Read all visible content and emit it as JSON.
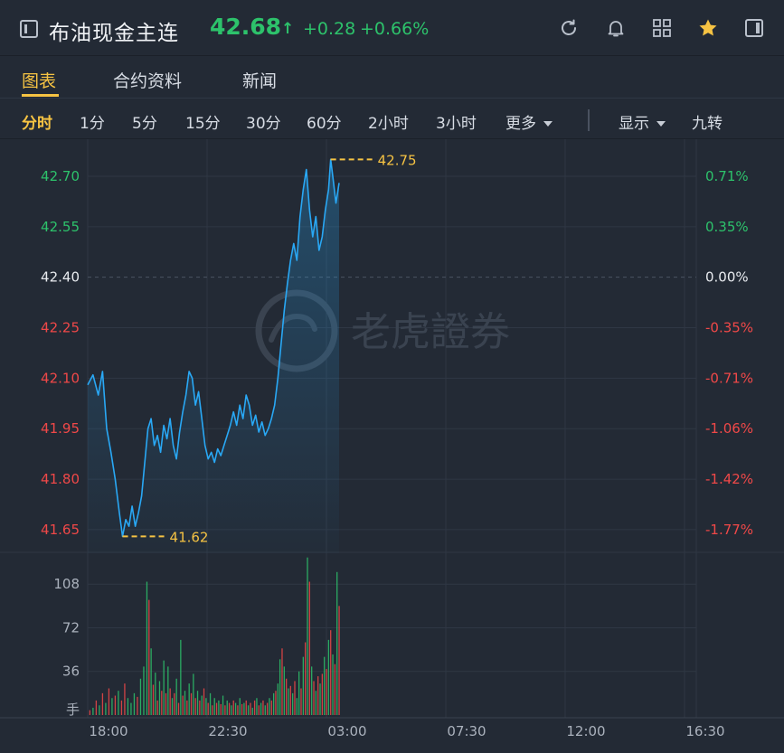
{
  "header": {
    "title": "布油现金主连",
    "price": "42.68",
    "price_arrow": "↑",
    "change": "+0.28",
    "change_pct": "+0.66%",
    "icons": [
      "refresh-icon",
      "bell-icon",
      "grid-icon",
      "star-icon",
      "panel-icon"
    ]
  },
  "tabs": [
    "图表",
    "合约资料",
    "新闻"
  ],
  "periods": {
    "items": [
      "分时",
      "1分",
      "5分",
      "15分",
      "30分",
      "60分",
      "2小时",
      "3小时"
    ],
    "more": "更多",
    "display": "显示",
    "jiuzhuan": "九转"
  },
  "watermark": "老虎證券",
  "colors": {
    "up": "#2dc26b",
    "down": "#f04848",
    "line": "#29a8f5",
    "accent": "#f6c343",
    "neutral": "#e8ebef"
  },
  "chart_data": {
    "type": "line",
    "prev_close": 42.4,
    "y_ticks_left": [
      "42.70",
      "42.55",
      "42.40",
      "42.25",
      "42.10",
      "41.95",
      "41.80",
      "41.65"
    ],
    "y_ticks_right": [
      "0.71%",
      "0.35%",
      "0.00%",
      "-0.35%",
      "-0.71%",
      "-1.06%",
      "-1.42%",
      "-1.77%"
    ],
    "ylim": [
      41.58,
      42.81
    ],
    "x_ticks": [
      "18:00",
      "22:30",
      "03:00",
      "07:30",
      "12:00",
      "16:30"
    ],
    "high_label": "42.75",
    "low_label": "41.62",
    "volume_ticks": [
      "108",
      "72",
      "36"
    ],
    "volume_unit": "手",
    "volume_max": 135,
    "price_series": [
      [
        0,
        42.08
      ],
      [
        5,
        42.11
      ],
      [
        10,
        42.05
      ],
      [
        14,
        42.12
      ],
      [
        18,
        41.95
      ],
      [
        22,
        41.88
      ],
      [
        26,
        41.8
      ],
      [
        30,
        41.7
      ],
      [
        33,
        41.63
      ],
      [
        36,
        41.68
      ],
      [
        39,
        41.66
      ],
      [
        42,
        41.72
      ],
      [
        45,
        41.66
      ],
      [
        48,
        41.7
      ],
      [
        51,
        41.75
      ],
      [
        54,
        41.85
      ],
      [
        57,
        41.95
      ],
      [
        60,
        41.98
      ],
      [
        63,
        41.9
      ],
      [
        66,
        41.93
      ],
      [
        69,
        41.88
      ],
      [
        72,
        41.96
      ],
      [
        75,
        41.92
      ],
      [
        78,
        41.98
      ],
      [
        81,
        41.9
      ],
      [
        84,
        41.86
      ],
      [
        87,
        41.94
      ],
      [
        90,
        42.0
      ],
      [
        93,
        42.05
      ],
      [
        96,
        42.12
      ],
      [
        99,
        42.1
      ],
      [
        102,
        42.02
      ],
      [
        105,
        42.06
      ],
      [
        108,
        41.98
      ],
      [
        111,
        41.9
      ],
      [
        114,
        41.86
      ],
      [
        117,
        41.88
      ],
      [
        120,
        41.85
      ],
      [
        123,
        41.89
      ],
      [
        126,
        41.87
      ],
      [
        129,
        41.9
      ],
      [
        132,
        41.93
      ],
      [
        135,
        41.96
      ],
      [
        138,
        42.0
      ],
      [
        141,
        41.96
      ],
      [
        144,
        42.02
      ],
      [
        147,
        41.98
      ],
      [
        150,
        42.05
      ],
      [
        153,
        42.02
      ],
      [
        156,
        41.96
      ],
      [
        159,
        41.99
      ],
      [
        162,
        41.94
      ],
      [
        165,
        41.97
      ],
      [
        168,
        41.93
      ],
      [
        171,
        41.95
      ],
      [
        174,
        41.98
      ],
      [
        177,
        42.02
      ],
      [
        180,
        42.1
      ],
      [
        183,
        42.2
      ],
      [
        186,
        42.3
      ],
      [
        189,
        42.38
      ],
      [
        192,
        42.45
      ],
      [
        195,
        42.5
      ],
      [
        198,
        42.45
      ],
      [
        201,
        42.58
      ],
      [
        204,
        42.66
      ],
      [
        207,
        42.72
      ],
      [
        210,
        42.6
      ],
      [
        213,
        42.52
      ],
      [
        216,
        42.58
      ],
      [
        219,
        42.48
      ],
      [
        222,
        42.52
      ],
      [
        225,
        42.6
      ],
      [
        228,
        42.66
      ],
      [
        230,
        42.75
      ],
      [
        232,
        42.7
      ],
      [
        235,
        42.62
      ],
      [
        238,
        42.68
      ]
    ],
    "volume_series": [
      [
        2,
        4,
        "down"
      ],
      [
        5,
        6,
        "up"
      ],
      [
        8,
        12,
        "down"
      ],
      [
        11,
        8,
        "up"
      ],
      [
        14,
        18,
        "down"
      ],
      [
        17,
        10,
        "up"
      ],
      [
        20,
        22,
        "down"
      ],
      [
        23,
        14,
        "up"
      ],
      [
        26,
        16,
        "down"
      ],
      [
        29,
        20,
        "up"
      ],
      [
        32,
        12,
        "down"
      ],
      [
        35,
        26,
        "down"
      ],
      [
        38,
        14,
        "up"
      ],
      [
        41,
        10,
        "up"
      ],
      [
        44,
        18,
        "up"
      ],
      [
        47,
        15,
        "down"
      ],
      [
        50,
        30,
        "up"
      ],
      [
        53,
        40,
        "up"
      ],
      [
        56,
        110,
        "up"
      ],
      [
        58,
        95,
        "down"
      ],
      [
        60,
        55,
        "up"
      ],
      [
        62,
        25,
        "down"
      ],
      [
        64,
        35,
        "up"
      ],
      [
        66,
        12,
        "down"
      ],
      [
        68,
        28,
        "up"
      ],
      [
        70,
        20,
        "down"
      ],
      [
        72,
        45,
        "up"
      ],
      [
        74,
        18,
        "down"
      ],
      [
        76,
        40,
        "up"
      ],
      [
        78,
        22,
        "down"
      ],
      [
        80,
        14,
        "up"
      ],
      [
        82,
        18,
        "down"
      ],
      [
        84,
        30,
        "up"
      ],
      [
        86,
        10,
        "down"
      ],
      [
        88,
        62,
        "up"
      ],
      [
        90,
        16,
        "down"
      ],
      [
        92,
        20,
        "up"
      ],
      [
        94,
        12,
        "down"
      ],
      [
        96,
        26,
        "up"
      ],
      [
        98,
        18,
        "down"
      ],
      [
        100,
        34,
        "up"
      ],
      [
        102,
        14,
        "down"
      ],
      [
        104,
        20,
        "up"
      ],
      [
        106,
        12,
        "down"
      ],
      [
        108,
        16,
        "up"
      ],
      [
        110,
        22,
        "down"
      ],
      [
        112,
        14,
        "up"
      ],
      [
        114,
        10,
        "down"
      ],
      [
        116,
        18,
        "up"
      ],
      [
        118,
        8,
        "down"
      ],
      [
        120,
        14,
        "up"
      ],
      [
        122,
        10,
        "down"
      ],
      [
        124,
        12,
        "up"
      ],
      [
        126,
        9,
        "down"
      ],
      [
        128,
        16,
        "up"
      ],
      [
        130,
        8,
        "down"
      ],
      [
        132,
        12,
        "up"
      ],
      [
        134,
        10,
        "down"
      ],
      [
        136,
        8,
        "up"
      ],
      [
        138,
        12,
        "down"
      ],
      [
        140,
        10,
        "up"
      ],
      [
        142,
        8,
        "down"
      ],
      [
        144,
        14,
        "up"
      ],
      [
        146,
        9,
        "down"
      ],
      [
        148,
        10,
        "up"
      ],
      [
        150,
        12,
        "down"
      ],
      [
        152,
        8,
        "up"
      ],
      [
        154,
        10,
        "down"
      ],
      [
        156,
        6,
        "up"
      ],
      [
        158,
        12,
        "down"
      ],
      [
        160,
        14,
        "up"
      ],
      [
        162,
        8,
        "down"
      ],
      [
        164,
        10,
        "up"
      ],
      [
        166,
        12,
        "down"
      ],
      [
        168,
        8,
        "up"
      ],
      [
        170,
        10,
        "down"
      ],
      [
        172,
        14,
        "up"
      ],
      [
        174,
        12,
        "down"
      ],
      [
        176,
        18,
        "up"
      ],
      [
        178,
        20,
        "down"
      ],
      [
        180,
        26,
        "up"
      ],
      [
        182,
        46,
        "up"
      ],
      [
        184,
        55,
        "down"
      ],
      [
        186,
        40,
        "up"
      ],
      [
        188,
        30,
        "down"
      ],
      [
        190,
        22,
        "up"
      ],
      [
        192,
        24,
        "down"
      ],
      [
        194,
        18,
        "up"
      ],
      [
        196,
        28,
        "down"
      ],
      [
        198,
        14,
        "up"
      ],
      [
        200,
        36,
        "up"
      ],
      [
        202,
        22,
        "down"
      ],
      [
        204,
        48,
        "up"
      ],
      [
        206,
        60,
        "down"
      ],
      [
        208,
        130,
        "up"
      ],
      [
        210,
        110,
        "down"
      ],
      [
        212,
        40,
        "up"
      ],
      [
        214,
        28,
        "down"
      ],
      [
        216,
        20,
        "up"
      ],
      [
        218,
        32,
        "down"
      ],
      [
        220,
        26,
        "up"
      ],
      [
        222,
        34,
        "down"
      ],
      [
        224,
        48,
        "up"
      ],
      [
        226,
        38,
        "down"
      ],
      [
        228,
        62,
        "up"
      ],
      [
        230,
        70,
        "down"
      ],
      [
        232,
        50,
        "up"
      ],
      [
        234,
        42,
        "down"
      ],
      [
        236,
        118,
        "up"
      ],
      [
        238,
        90,
        "down"
      ]
    ]
  }
}
